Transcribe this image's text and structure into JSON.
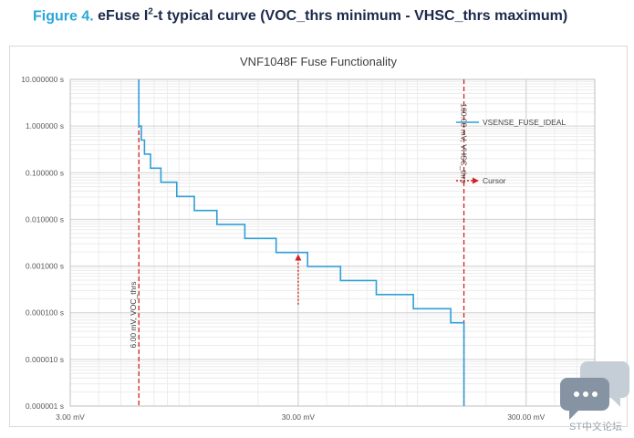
{
  "figure": {
    "label": "Figure 4.",
    "title_pre": "eFuse I",
    "title_sup": "2",
    "title_post": "-t typical curve (VOC_thrs minimum - VHSC_thrs maximum)"
  },
  "watermark": {
    "text": "ST中文论坛",
    "icon": "chat-bubbles-icon"
  },
  "colors": {
    "series": "#2e9fd8",
    "threshold": "#d42020",
    "grid_major": "#d0d0d0",
    "grid_minor": "#ececec"
  },
  "chart_data": {
    "type": "line",
    "title": "VNF1048F Fuse Functionality",
    "xscale": "log",
    "yscale": "log",
    "xlim": [
      3.0,
      600.0
    ],
    "ylim": [
      1e-06,
      10.0
    ],
    "x_ticks": [
      3.0,
      30.0,
      300.0
    ],
    "x_tick_labels": [
      "3.00 mV",
      "30.00 mV",
      "300.00 mV"
    ],
    "y_ticks": [
      10.0,
      1.0,
      0.1,
      0.01,
      0.001,
      0.0001,
      1e-05,
      1e-06
    ],
    "y_tick_labels": [
      "10.000000 s",
      "1.000000 s",
      "0.100000 s",
      "0.010000 s",
      "0.001000 s",
      "0.000100 s",
      "0.000010 s",
      "0.000001 s"
    ],
    "grid": true,
    "legend_position": "right",
    "series": [
      {
        "name": "VSENSE_FUSE_IDEAL",
        "style": "step",
        "x": [
          6.0,
          6.0,
          6.15,
          6.15,
          6.35,
          6.35,
          6.75,
          6.75,
          7.5,
          7.5,
          8.8,
          8.8,
          10.5,
          10.5,
          13.2,
          13.2,
          17.5,
          17.5,
          24.0,
          24.0,
          33.0,
          33.0,
          46.0,
          46.0,
          66.0,
          66.0,
          96.0,
          96.0,
          140.0,
          140.0,
          160.0,
          160.0
        ],
        "y": [
          10.0,
          1.0,
          1.0,
          0.5,
          0.5,
          0.25,
          0.25,
          0.125,
          0.125,
          0.0625,
          0.0625,
          0.031,
          0.031,
          0.0155,
          0.0155,
          0.0078,
          0.0078,
          0.0039,
          0.0039,
          0.00195,
          0.00195,
          0.00098,
          0.00098,
          0.00049,
          0.00049,
          0.000245,
          0.000245,
          0.000122,
          0.000122,
          6.1e-05,
          6.1e-05,
          1e-06
        ]
      }
    ],
    "threshold_lines": [
      {
        "x": 6.0,
        "label": "6.00 mV, VOC_thrs"
      },
      {
        "x": 160.0,
        "label": "160.00 mV, VHSC_thrs"
      }
    ],
    "cursor": {
      "name": "Cursor",
      "x": 30.0,
      "y_from": 0.00015,
      "y_to": 0.0018
    }
  }
}
